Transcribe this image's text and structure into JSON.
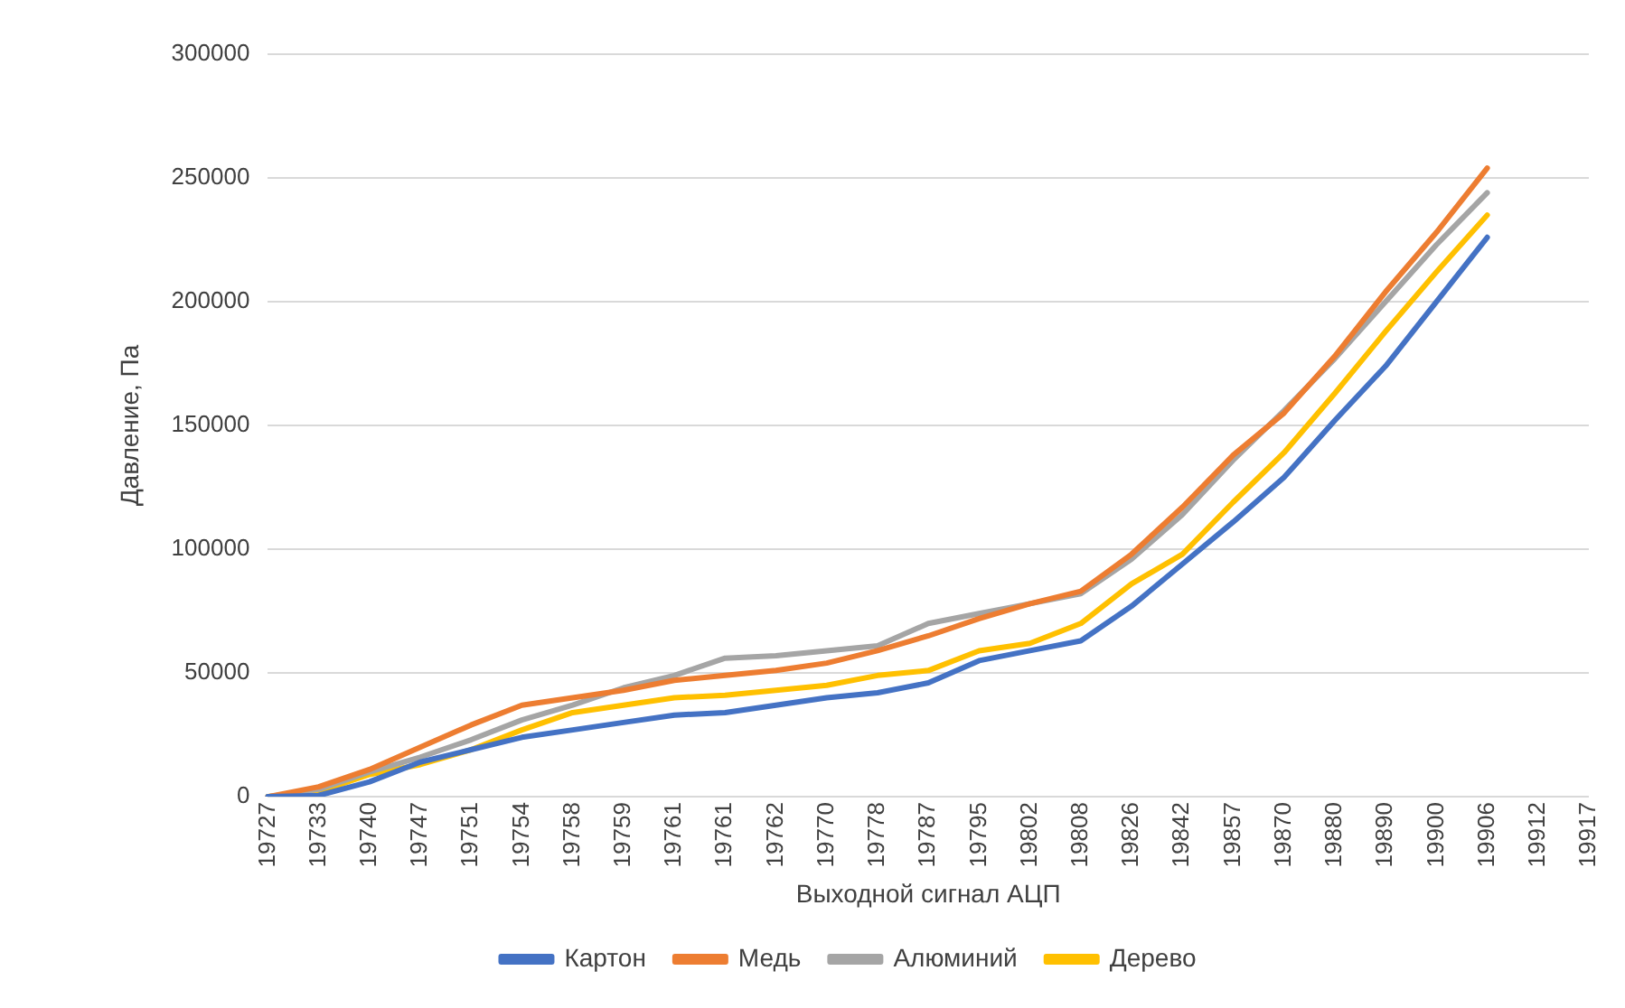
{
  "chart_data": {
    "type": "line",
    "xlabel": "Выходной сигнал АЦП",
    "ylabel": "Давление, Па",
    "categories": [
      "19727",
      "19733",
      "19740",
      "19747",
      "19751",
      "19754",
      "19758",
      "19759",
      "19761",
      "19761",
      "19762",
      "19770",
      "19778",
      "19787",
      "19795",
      "19802",
      "19808",
      "19826",
      "19842",
      "19857",
      "19870",
      "19880",
      "19890",
      "19900",
      "19906",
      "19912",
      "19917"
    ],
    "series": [
      {
        "name": "Картон",
        "color": "#4472c4",
        "values": [
          0,
          500,
          6000,
          14000,
          19000,
          24000,
          27000,
          30000,
          33000,
          34000,
          37000,
          40000,
          42000,
          46000,
          55000,
          59000,
          63000,
          77000,
          94000,
          111000,
          129000,
          152000,
          174000,
          200000,
          226000,
          null,
          null
        ]
      },
      {
        "name": "Медь",
        "color": "#ed7d31",
        "values": [
          0,
          4000,
          11000,
          20000,
          29000,
          37000,
          40000,
          43000,
          47000,
          49000,
          51000,
          54000,
          59000,
          65000,
          72000,
          78000,
          83000,
          98000,
          117000,
          138000,
          155000,
          178000,
          204000,
          228000,
          254000,
          null,
          null
        ]
      },
      {
        "name": "Алюминий",
        "color": "#a5a5a5",
        "values": [
          0,
          3000,
          10000,
          16000,
          23000,
          31000,
          37000,
          44000,
          49000,
          56000,
          57000,
          59000,
          61000,
          70000,
          74000,
          78000,
          82000,
          96000,
          114000,
          136000,
          156000,
          177000,
          200000,
          223000,
          244000,
          null,
          null
        ]
      },
      {
        "name": "Дерево",
        "color": "#ffc000",
        "values": [
          0,
          2000,
          9000,
          13000,
          19000,
          27000,
          34000,
          37000,
          40000,
          41000,
          43000,
          45000,
          49000,
          51000,
          59000,
          62000,
          70000,
          86000,
          98000,
          119000,
          139000,
          163000,
          188000,
          212000,
          235000,
          null,
          null
        ]
      }
    ],
    "ylim": [
      0,
      300000
    ],
    "yticks": [
      0,
      50000,
      100000,
      150000,
      200000,
      250000,
      300000
    ],
    "grid": "y",
    "legend": "bottom",
    "marker": "none",
    "line_style": "solid"
  }
}
